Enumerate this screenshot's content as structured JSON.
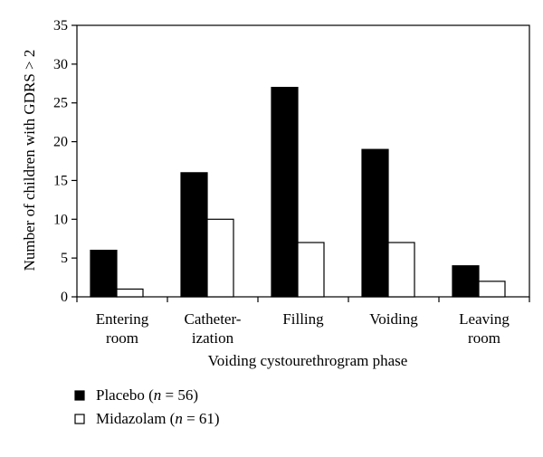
{
  "chart_data": {
    "type": "bar",
    "categories": [
      [
        "Entering",
        "room"
      ],
      [
        "Catheter-",
        "ization"
      ],
      [
        "Filling"
      ],
      [
        "Voiding"
      ],
      [
        "Leaving",
        "room"
      ]
    ],
    "series": [
      {
        "name_prefix": "Placebo (",
        "name_var": "n",
        "name_suffix": " = 56)",
        "color": "#000000",
        "values": [
          6,
          16,
          27,
          19,
          4
        ]
      },
      {
        "name_prefix": "Midazolam (",
        "name_var": "n",
        "name_suffix": " = 61)",
        "color": "#ffffff",
        "values": [
          1,
          10,
          7,
          7,
          2
        ]
      }
    ],
    "xlabel": "Voiding cystourethrogram phase",
    "ylabel": "Number of children with GDRS > 2",
    "ylim": [
      0,
      35
    ],
    "yticks": [
      0,
      5,
      10,
      15,
      20,
      25,
      30,
      35
    ],
    "grid": false,
    "legend_position": "bottom-left"
  }
}
